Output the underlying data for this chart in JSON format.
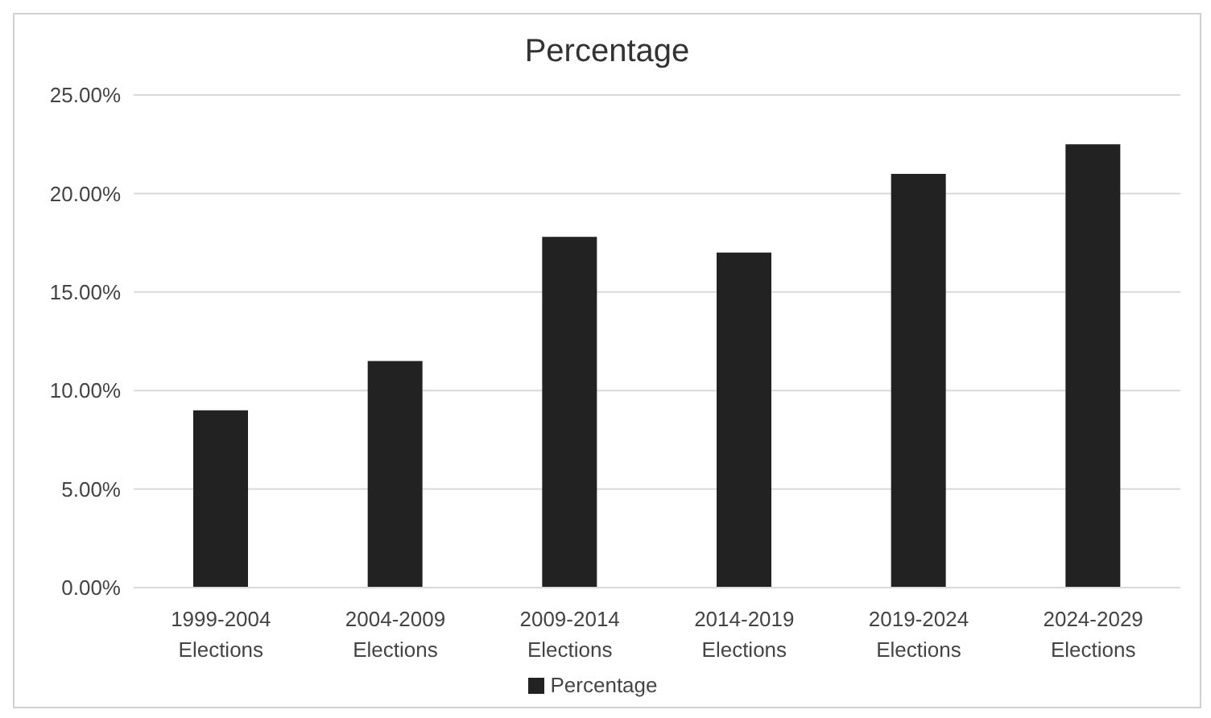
{
  "chart_data": {
    "type": "bar",
    "title": "Percentage",
    "categories": [
      "1999-2004 Elections",
      "2004-2009 Elections",
      "2009-2014 Elections",
      "2014-2019 Elections",
      "2019-2024 Elections",
      "2024-2029 Elections"
    ],
    "series": [
      {
        "name": "Percentage",
        "color": "#222222",
        "values": [
          9.0,
          11.5,
          17.8,
          17.0,
          21.0,
          22.5
        ]
      }
    ],
    "ylim": [
      0,
      25
    ],
    "yticks": [
      {
        "value": 0,
        "label": "0.00%"
      },
      {
        "value": 5,
        "label": "5.00%"
      },
      {
        "value": 10,
        "label": "10.00%"
      },
      {
        "value": 15,
        "label": "15.00%"
      },
      {
        "value": 20,
        "label": "20.00%"
      },
      {
        "value": 25,
        "label": "25.00%"
      }
    ],
    "grid": "y",
    "legend": "bottom"
  }
}
